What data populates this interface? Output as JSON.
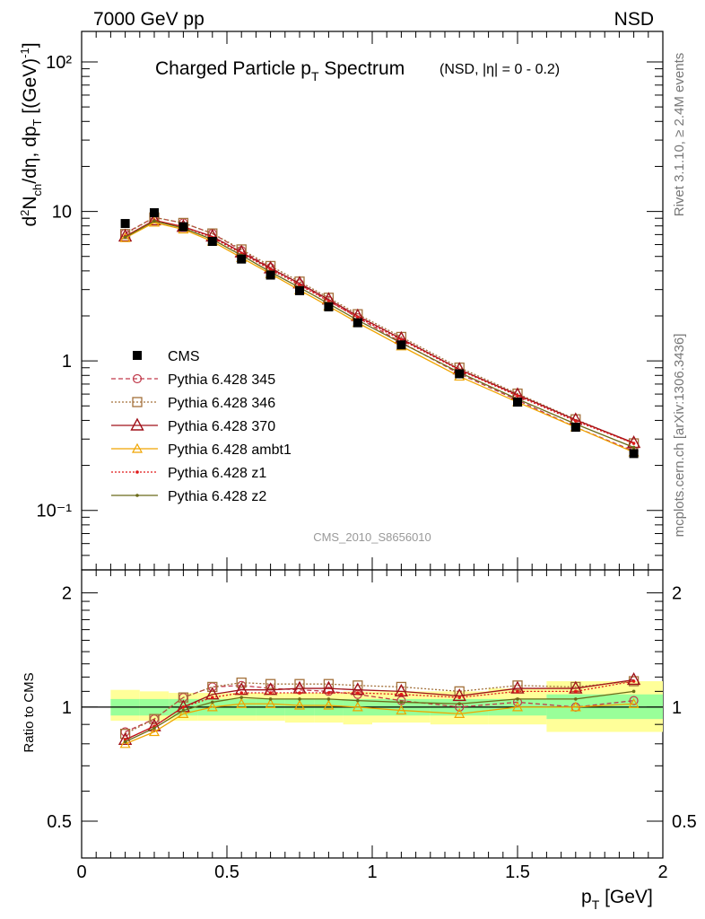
{
  "header": {
    "left": "7000 GeV pp",
    "right": "NSD"
  },
  "side": {
    "rivet": "Rivet 3.1.10, ≥ 2.4M events",
    "mcplots": "mcplots.cern.ch [arXiv:1306.3436]"
  },
  "title": {
    "main": "Charged Particle p",
    "main_sub": "T",
    "main_rest": " Spectrum",
    "qual": "(NSD, |η| =   0 - 0.2)"
  },
  "watermark": "CMS_2010_S8656010",
  "axes": {
    "ylabel_main": "d²N_ch/dη, dp_T [(GeV)⁻¹]",
    "ylabel_ratio": "Ratio to CMS",
    "xlabel": "p_T [GeV]",
    "xlabel_text": "p",
    "xlabel_sub": "T",
    "xlabel_unit": " [GeV]",
    "x_ticks": [
      "0",
      "0.5",
      "1",
      "1.5",
      "2"
    ],
    "y_main_ticks": [
      "10⁻¹",
      "1",
      "10",
      "10²"
    ],
    "y_ratio_ticks": [
      "0.5",
      "1",
      "2"
    ]
  },
  "colors": {
    "cms": "#000000",
    "p345": "#c0394a",
    "p346": "#a3703a",
    "p370": "#a0121a",
    "ambt1": "#f0a500",
    "z1": "#e01818",
    "z2": "#6b6b1a",
    "band_yellow": "#ffff99",
    "band_green": "#99ff99"
  },
  "chart_data": {
    "type": "line",
    "title": "Charged Particle pT Spectrum (NSD, |η| = 0 - 0.2)",
    "xlabel": "pT [GeV]",
    "ylabel": "d2Nch/dη, dpT [(GeV)-1]",
    "xlim": [
      0,
      2
    ],
    "ylim": [
      0.04,
      160
    ],
    "yscale": "log",
    "ratio_ylim": [
      0.4,
      2.3
    ],
    "x": [
      0.15,
      0.25,
      0.35,
      0.45,
      0.55,
      0.65,
      0.75,
      0.85,
      0.95,
      1.1,
      1.3,
      1.5,
      1.7,
      1.9
    ],
    "data": {
      "name": "CMS",
      "values": [
        8.3,
        9.8,
        7.9,
        6.3,
        4.8,
        3.75,
        2.95,
        2.3,
        1.8,
        1.28,
        0.82,
        0.53,
        0.36,
        0.24
      ],
      "ratio_band_yellow": [
        {
          "x0": 0.1,
          "x1": 0.2,
          "lo": 0.92,
          "hi": 1.11
        },
        {
          "x0": 0.2,
          "x1": 0.3,
          "lo": 0.92,
          "hi": 1.1
        },
        {
          "x0": 0.3,
          "x1": 0.4,
          "lo": 0.92,
          "hi": 1.09
        },
        {
          "x0": 0.4,
          "x1": 0.5,
          "lo": 0.92,
          "hi": 1.09
        },
        {
          "x0": 0.5,
          "x1": 0.6,
          "lo": 0.92,
          "hi": 1.09
        },
        {
          "x0": 0.6,
          "x1": 0.7,
          "lo": 0.92,
          "hi": 1.09
        },
        {
          "x0": 0.7,
          "x1": 0.8,
          "lo": 0.91,
          "hi": 1.09
        },
        {
          "x0": 0.8,
          "x1": 0.9,
          "lo": 0.91,
          "hi": 1.09
        },
        {
          "x0": 0.9,
          "x1": 1.0,
          "lo": 0.9,
          "hi": 1.1
        },
        {
          "x0": 1.0,
          "x1": 1.2,
          "lo": 0.91,
          "hi": 1.1
        },
        {
          "x0": 1.2,
          "x1": 1.4,
          "lo": 0.9,
          "hi": 1.1
        },
        {
          "x0": 1.4,
          "x1": 1.6,
          "lo": 0.9,
          "hi": 1.12
        },
        {
          "x0": 1.6,
          "x1": 2.0,
          "lo": 0.86,
          "hi": 1.17
        }
      ],
      "ratio_band_green": [
        {
          "x0": 0.1,
          "x1": 0.2,
          "lo": 0.95,
          "hi": 1.05
        },
        {
          "x0": 0.2,
          "x1": 0.3,
          "lo": 0.95,
          "hi": 1.05
        },
        {
          "x0": 0.3,
          "x1": 0.4,
          "lo": 0.95,
          "hi": 1.05
        },
        {
          "x0": 0.4,
          "x1": 0.5,
          "lo": 0.95,
          "hi": 1.05
        },
        {
          "x0": 0.5,
          "x1": 0.6,
          "lo": 0.95,
          "hi": 1.05
        },
        {
          "x0": 0.6,
          "x1": 0.7,
          "lo": 0.95,
          "hi": 1.05
        },
        {
          "x0": 0.7,
          "x1": 0.8,
          "lo": 0.95,
          "hi": 1.05
        },
        {
          "x0": 0.8,
          "x1": 0.9,
          "lo": 0.95,
          "hi": 1.05
        },
        {
          "x0": 0.9,
          "x1": 1.0,
          "lo": 0.95,
          "hi": 1.05
        },
        {
          "x0": 1.0,
          "x1": 1.2,
          "lo": 0.95,
          "hi": 1.05
        },
        {
          "x0": 1.2,
          "x1": 1.4,
          "lo": 0.95,
          "hi": 1.05
        },
        {
          "x0": 1.4,
          "x1": 1.6,
          "lo": 0.95,
          "hi": 1.05
        },
        {
          "x0": 1.6,
          "x1": 2.0,
          "lo": 0.93,
          "hi": 1.08
        }
      ]
    },
    "series": [
      {
        "name": "Pythia 6.428 345",
        "key": "p345",
        "dash": "5,3",
        "marker": "circle",
        "ratio": [
          0.86,
          0.93,
          1.06,
          1.13,
          1.14,
          1.12,
          1.11,
          1.1,
          1.08,
          1.04,
          1.0,
          1.03,
          1.0,
          1.04
        ]
      },
      {
        "name": "Pythia 6.428 346",
        "key": "p346",
        "dash": "2,2",
        "marker": "square",
        "ratio": [
          0.85,
          0.93,
          1.06,
          1.13,
          1.16,
          1.15,
          1.15,
          1.15,
          1.14,
          1.13,
          1.1,
          1.14,
          1.13,
          1.17
        ]
      },
      {
        "name": "Pythia 6.428 370",
        "key": "p370",
        "dash": "",
        "marker": "triangle",
        "ratio": [
          0.82,
          0.89,
          1.0,
          1.08,
          1.11,
          1.11,
          1.12,
          1.12,
          1.11,
          1.1,
          1.07,
          1.12,
          1.12,
          1.18
        ]
      },
      {
        "name": "Pythia 6.428 ambt1",
        "key": "ambt1",
        "dash": "",
        "marker": "triangle-small",
        "ratio": [
          0.8,
          0.86,
          0.96,
          1.0,
          1.02,
          1.02,
          1.01,
          1.01,
          1.0,
          0.98,
          0.96,
          1.0,
          1.0,
          1.02
        ]
      },
      {
        "name": "Pythia 6.428 z1",
        "key": "z1",
        "dash": "2,2",
        "marker": "dot",
        "ratio": [
          0.82,
          0.89,
          1.0,
          1.06,
          1.09,
          1.09,
          1.09,
          1.09,
          1.09,
          1.08,
          1.06,
          1.1,
          1.1,
          1.17
        ]
      },
      {
        "name": "Pythia 6.428 z2",
        "key": "z2",
        "dash": "",
        "marker": "dot",
        "ratio": [
          0.81,
          0.88,
          0.98,
          1.03,
          1.06,
          1.05,
          1.05,
          1.05,
          1.04,
          1.03,
          1.02,
          1.05,
          1.05,
          1.1
        ]
      }
    ],
    "legend": [
      "CMS",
      "Pythia 6.428 345",
      "Pythia 6.428 346",
      "Pythia 6.428 370",
      "Pythia 6.428 ambt1",
      "Pythia 6.428 z1",
      "Pythia 6.428 z2"
    ],
    "legend_position": "middle-left"
  }
}
